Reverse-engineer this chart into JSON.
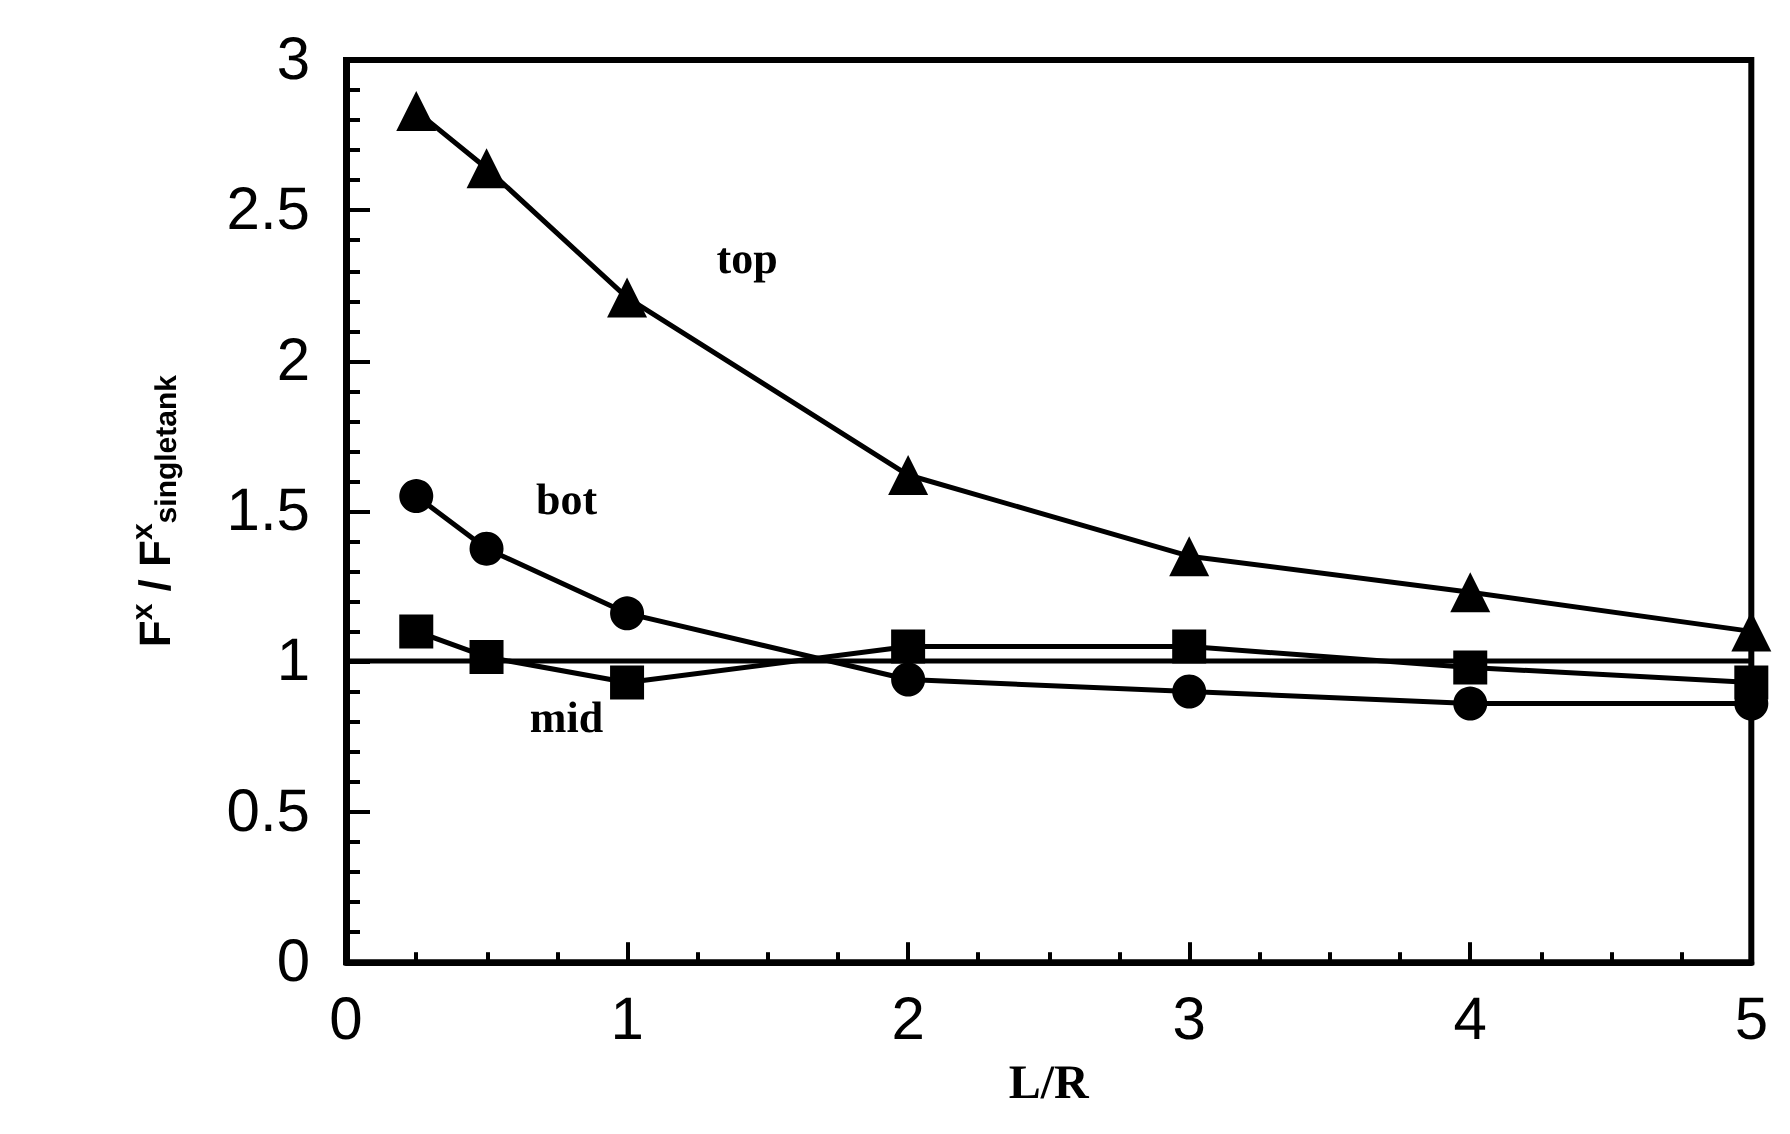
{
  "chart_data": {
    "type": "line",
    "xlabel": "L/R",
    "ylabel": "F$^{x}$ / F$^{x}$$_{singletank}$",
    "xlim": [
      0,
      5
    ],
    "xticks": [
      0,
      1,
      2,
      3,
      4,
      5
    ],
    "ylim": [
      0,
      3
    ],
    "yticks": [
      0,
      0.5,
      1,
      1.5,
      2,
      2.5,
      3
    ],
    "grid": false,
    "legend": false,
    "series": [
      {
        "name": "top",
        "color": "#000000",
        "marker": "triangle",
        "x": [
          0.25,
          0.5,
          1,
          2,
          3,
          4,
          5
        ],
        "values": [
          2.83,
          2.64,
          2.21,
          1.62,
          1.35,
          1.23,
          1.1
        ]
      },
      {
        "name": "bot",
        "color": "#000000",
        "marker": "circle",
        "x": [
          0.25,
          0.5,
          1,
          2,
          3,
          4,
          5
        ],
        "values": [
          1.55,
          1.375,
          1.16,
          0.94,
          0.9,
          0.86,
          0.86
        ]
      },
      {
        "name": "mid",
        "color": "#000000",
        "marker": "square",
        "x": [
          0.25,
          0.5,
          1,
          2,
          3,
          4,
          5
        ],
        "values": [
          1.1,
          1.015,
          0.93,
          1.05,
          1.05,
          0.98,
          0.93
        ]
      }
    ],
    "ref_lines": [
      {
        "axis": "y",
        "value": 1,
        "color": "#000000",
        "line_style": "solid"
      }
    ]
  }
}
